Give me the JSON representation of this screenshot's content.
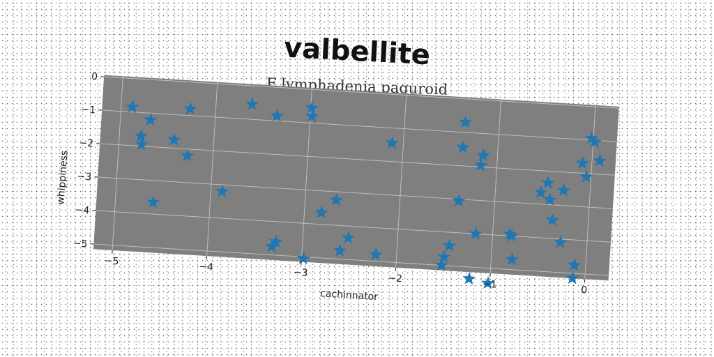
{
  "chart_data": {
    "type": "scatter",
    "title": "valbellite",
    "subtitle": "F lymphadenia paguroid",
    "xlabel": "cachinnator",
    "ylabel": "whippiness",
    "xlim": [
      -5.2,
      0.25
    ],
    "ylim": [
      -5.15,
      0.05
    ],
    "xticks": [
      -5,
      -4,
      -3,
      -2,
      -1,
      0
    ],
    "yticks": [
      0,
      -1,
      -2,
      -3,
      -4,
      -5
    ],
    "grid": true,
    "marker": "star",
    "colors": {
      "points": "#1f77b4",
      "plot_background": "#7f7f7f",
      "grid": "#bdbdbd"
    },
    "series": [
      {
        "name": "",
        "points": [
          {
            "x": -4.88,
            "y": -0.85
          },
          {
            "x": -4.77,
            "y": -1.7
          },
          {
            "x": -4.76,
            "y": -1.95
          },
          {
            "x": -4.68,
            "y": -1.2
          },
          {
            "x": -4.6,
            "y": -3.65
          },
          {
            "x": -4.42,
            "y": -1.75
          },
          {
            "x": -4.27,
            "y": -2.2
          },
          {
            "x": -4.27,
            "y": -0.8
          },
          {
            "x": -3.88,
            "y": -3.2
          },
          {
            "x": -3.62,
            "y": -0.55
          },
          {
            "x": -3.35,
            "y": -0.85
          },
          {
            "x": -3.32,
            "y": -4.75
          },
          {
            "x": -3.28,
            "y": -4.6
          },
          {
            "x": -2.99,
            "y": -0.55
          },
          {
            "x": -2.98,
            "y": -0.8
          },
          {
            "x": -2.98,
            "y": -5.05
          },
          {
            "x": -2.82,
            "y": -3.65
          },
          {
            "x": -2.67,
            "y": -3.25
          },
          {
            "x": -2.52,
            "y": -4.35
          },
          {
            "x": -2.6,
            "y": -4.75
          },
          {
            "x": -2.22,
            "y": -4.8
          },
          {
            "x": -2.12,
            "y": -1.45
          },
          {
            "x": -1.52,
            "y": -5.0
          },
          {
            "x": -1.5,
            "y": -4.75
          },
          {
            "x": -1.45,
            "y": -4.4
          },
          {
            "x": -1.38,
            "y": -3.05
          },
          {
            "x": -1.37,
            "y": -1.45
          },
          {
            "x": -1.36,
            "y": -0.7
          },
          {
            "x": -1.22,
            "y": -5.35
          },
          {
            "x": -1.18,
            "y": -4.0
          },
          {
            "x": -1.17,
            "y": -1.95
          },
          {
            "x": -1.15,
            "y": -1.65
          },
          {
            "x": -1.02,
            "y": -5.45
          },
          {
            "x": -0.82,
            "y": -3.95
          },
          {
            "x": -0.8,
            "y": -4.0
          },
          {
            "x": -0.78,
            "y": -4.7
          },
          {
            "x": -0.52,
            "y": -2.65
          },
          {
            "x": -0.45,
            "y": -2.35
          },
          {
            "x": -0.42,
            "y": -2.85
          },
          {
            "x": -0.38,
            "y": -3.45
          },
          {
            "x": -0.28,
            "y": -2.55
          },
          {
            "x": -0.28,
            "y": -4.1
          },
          {
            "x": -0.13,
            "y": -5.15
          },
          {
            "x": -0.12,
            "y": -4.75
          },
          {
            "x": -0.1,
            "y": -1.7
          },
          {
            "x": -0.05,
            "y": -2.1
          },
          {
            "x": -0.02,
            "y": -0.95
          },
          {
            "x": 0.02,
            "y": -1.05
          },
          {
            "x": 0.08,
            "y": -1.6
          }
        ]
      }
    ]
  }
}
